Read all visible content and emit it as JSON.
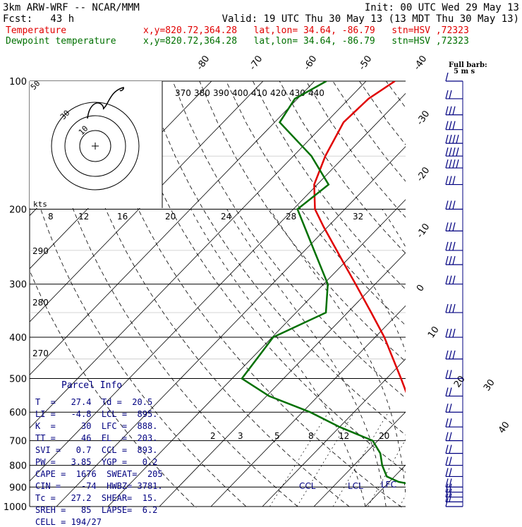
{
  "header": {
    "line1_left": "3km ARW-WRF -- NCAR/MMM",
    "line1_right": "Init: 00 UTC Wed 29 May 13",
    "line2_left": "Fcst:   43 h",
    "line2_right": "Valid: 19 UTC Thu 30 May 13 (13 MDT Thu 30 May 13)",
    "temp_label": "Temperature",
    "temp_info": "x,y=820.72,364.28   lat,lon= 34.64, -86.79   stn=HSV ,72323",
    "dew_label": "Dewpoint temperature",
    "dew_info": "x,y=820.72,364.28   lat,lon= 34.64, -86.79   stn=HSV ,72323"
  },
  "barb_legend": {
    "line1": "Full barb:",
    "line2": "5 m s"
  },
  "hodograph": {
    "ring_labels": [
      "50",
      "30",
      "10"
    ],
    "units": "kts"
  },
  "parcel_info": {
    "title": "Parcel Info",
    "rows": [
      "T  =   27.4  Td =  20.5",
      "LI =   -4.8  LCL =  895.",
      "K  =     30  LFC =  888.",
      "TT =     46  EL  =  203.",
      "SVI =   0.7  CCL =  893.",
      "PW =   3.85  YGP =   0.2",
      "CAPE =  1676  SWEAT=  205",
      "CIN =    -74  HWBZ= 3781.",
      "Tc =   27.2  SHEAR=  15.",
      "SREH =   85  LAPSE=  6.2",
      "CELL = 194/27"
    ]
  },
  "chart_data": {
    "type": "line",
    "diagram": "skew-T log-p",
    "y_axis": {
      "label": "",
      "ticks": [
        100,
        200,
        300,
        400,
        500,
        600,
        700,
        800,
        900,
        1000
      ],
      "scale": "log",
      "range": [
        100,
        1000
      ]
    },
    "isotherm_labels": [
      "-80",
      "-70",
      "-60",
      "-50",
      "-40",
      "-30",
      "-20",
      "-10",
      "0",
      "10",
      "20",
      "30",
      "40"
    ],
    "theta_e_labels": [
      "370",
      "380",
      "390",
      "400",
      "410",
      "420",
      "430",
      "440"
    ],
    "theta_labels": [
      "290",
      "280",
      "270"
    ],
    "mixing_ratio_labels_upper": [
      "8",
      "12",
      "16",
      "20",
      "24",
      "28",
      "32"
    ],
    "mixing_ratio_labels_lower": [
      "2",
      "3",
      "5",
      "8",
      "12",
      "20"
    ],
    "levels": [
      {
        "name": "LCL",
        "value": 895
      },
      {
        "name": "LFC",
        "value": 888
      },
      {
        "name": "CCL",
        "value": 893
      }
    ],
    "level_labels": [
      "CCL",
      "LCL",
      "LFC"
    ],
    "series": [
      {
        "name": "Temperature",
        "color": "#e00000",
        "points": [
          [
            1000,
            28.2
          ],
          [
            950,
            24.5
          ],
          [
            925,
            23.1
          ],
          [
            900,
            21.2
          ],
          [
            850,
            18.0
          ],
          [
            800,
            15.5
          ],
          [
            750,
            12.3
          ],
          [
            700,
            9.2
          ],
          [
            650,
            5.6
          ],
          [
            600,
            1.6
          ],
          [
            550,
            -2.6
          ],
          [
            500,
            -7.2
          ],
          [
            450,
            -12.4
          ],
          [
            400,
            -18.2
          ],
          [
            350,
            -25.4
          ],
          [
            300,
            -33.8
          ],
          [
            270,
            -39.6
          ],
          [
            250,
            -43.8
          ],
          [
            220,
            -50.8
          ],
          [
            200,
            -55.8
          ],
          [
            175,
            -60.6
          ],
          [
            150,
            -63.8
          ],
          [
            125,
            -66.6
          ],
          [
            110,
            -66.2
          ],
          [
            100,
            -64.4
          ]
        ]
      },
      {
        "name": "Dewpoint temperature",
        "color": "#007000",
        "points": [
          [
            1000,
            20.5
          ],
          [
            950,
            21.0
          ],
          [
            925,
            20.2
          ],
          [
            900,
            18.2
          ],
          [
            875,
            11.8
          ],
          [
            850,
            8.5
          ],
          [
            800,
            5.5
          ],
          [
            750,
            2.9
          ],
          [
            700,
            -1.0
          ],
          [
            650,
            -10.0
          ],
          [
            600,
            -18.5
          ],
          [
            550,
            -29.5
          ],
          [
            500,
            -38.1
          ],
          [
            450,
            -38.9
          ],
          [
            400,
            -39.8
          ],
          [
            350,
            -34.2
          ],
          [
            300,
            -39.2
          ],
          [
            250,
            -48.2
          ],
          [
            200,
            -59.2
          ],
          [
            175,
            -57.8
          ],
          [
            150,
            -66.5
          ],
          [
            125,
            -79.0
          ],
          [
            110,
            -80.5
          ],
          [
            100,
            -77.7
          ]
        ]
      }
    ],
    "wind_barbs": [
      {
        "p": 1000,
        "speed_ms": 5
      },
      {
        "p": 975,
        "speed_ms": 10
      },
      {
        "p": 950,
        "speed_ms": 10
      },
      {
        "p": 925,
        "speed_ms": 10
      },
      {
        "p": 900,
        "speed_ms": 10
      },
      {
        "p": 850,
        "speed_ms": 10
      },
      {
        "p": 800,
        "speed_ms": 10
      },
      {
        "p": 750,
        "speed_ms": 10
      },
      {
        "p": 700,
        "speed_ms": 10
      },
      {
        "p": 650,
        "speed_ms": 10
      },
      {
        "p": 600,
        "speed_ms": 10
      },
      {
        "p": 550,
        "speed_ms": 10
      },
      {
        "p": 500,
        "speed_ms": 10
      },
      {
        "p": 450,
        "speed_ms": 15
      },
      {
        "p": 400,
        "speed_ms": 15
      },
      {
        "p": 350,
        "speed_ms": 15
      },
      {
        "p": 300,
        "speed_ms": 15
      },
      {
        "p": 270,
        "speed_ms": 15
      },
      {
        "p": 250,
        "speed_ms": 15
      },
      {
        "p": 225,
        "speed_ms": 15
      },
      {
        "p": 200,
        "speed_ms": 15
      },
      {
        "p": 175,
        "speed_ms": 15
      },
      {
        "p": 160,
        "speed_ms": 20
      },
      {
        "p": 150,
        "speed_ms": 20
      },
      {
        "p": 140,
        "speed_ms": 20
      },
      {
        "p": 130,
        "speed_ms": 15
      },
      {
        "p": 120,
        "speed_ms": 15
      },
      {
        "p": 110,
        "speed_ms": 10
      },
      {
        "p": 100,
        "speed_ms": 5
      }
    ]
  }
}
